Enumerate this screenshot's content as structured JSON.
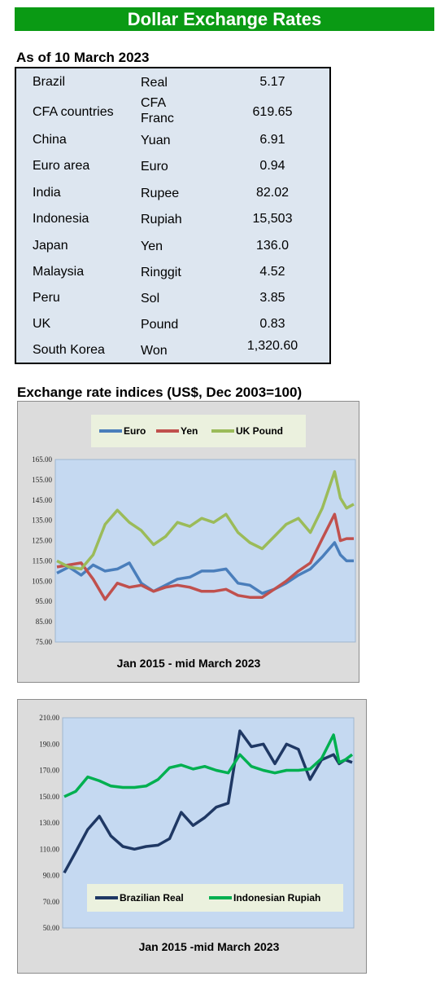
{
  "header": {
    "title": "Dollar Exchange Rates",
    "as_of": "As of 10 March 2023",
    "section_title": "Exchange rate indices (US$, Dec 2003=100)"
  },
  "rates": [
    {
      "country": "Brazil",
      "currency": "Real",
      "value": "5.17"
    },
    {
      "country": "CFA countries",
      "currency": "CFA Franc",
      "value": "619.65"
    },
    {
      "country": "China",
      "currency": "Yuan",
      "value": "6.91"
    },
    {
      "country": "Euro area",
      "currency": "Euro",
      "value": "0.94"
    },
    {
      "country": "India",
      "currency": "Rupee",
      "value": "82.02"
    },
    {
      "country": "Indonesia",
      "currency": "Rupiah",
      "value": "15,503"
    },
    {
      "country": "Japan",
      "currency": "Yen",
      "value": "136.0"
    },
    {
      "country": "Malaysia",
      "currency": "Ringgit",
      "value": "4.52"
    },
    {
      "country": "Peru",
      "currency": "Sol",
      "value": "3.85"
    },
    {
      "country": "UK",
      "currency": "Pound",
      "value": "0.83"
    },
    {
      "country": "South Korea",
      "currency": "Won",
      "value": "1,320.60"
    }
  ],
  "chart_data": [
    {
      "type": "line",
      "xlabel": "Jan 2015 -  mid March 2023",
      "ylim": [
        75,
        165
      ],
      "yticks": [
        "75.00",
        "85.00",
        "95.00",
        "105.00",
        "115.00",
        "125.00",
        "135.00",
        "145.00",
        "155.00",
        "165.00"
      ],
      "legend_position": "top",
      "x": [
        2015.0,
        2015.33,
        2015.67,
        2016.0,
        2016.33,
        2016.67,
        2017.0,
        2017.33,
        2017.67,
        2018.0,
        2018.33,
        2018.67,
        2019.0,
        2019.33,
        2019.67,
        2020.0,
        2020.33,
        2020.67,
        2021.0,
        2021.33,
        2021.67,
        2022.0,
        2022.33,
        2022.67,
        2022.83,
        2023.0,
        2023.2
      ],
      "series": [
        {
          "name": "Euro",
          "color": "#4a7ebb",
          "values": [
            109,
            112,
            108,
            113,
            110,
            111,
            114,
            104,
            100,
            103,
            106,
            107,
            110,
            110,
            111,
            104,
            103,
            99,
            101,
            104,
            108,
            111,
            117,
            124,
            118,
            115,
            115
          ]
        },
        {
          "name": "Yen",
          "color": "#c0504d",
          "values": [
            112,
            113,
            114,
            106,
            96,
            104,
            102,
            103,
            100,
            102,
            103,
            102,
            100,
            100,
            101,
            98,
            97,
            97,
            101,
            105,
            110,
            114,
            126,
            138,
            125,
            126,
            126
          ]
        },
        {
          "name": "UK Pound",
          "color": "#9bbb59",
          "values": [
            115,
            112,
            111,
            118,
            133,
            140,
            134,
            130,
            123,
            127,
            134,
            132,
            136,
            134,
            138,
            129,
            124,
            121,
            127,
            133,
            136,
            129,
            141,
            159,
            146,
            141,
            143
          ]
        }
      ]
    },
    {
      "type": "line",
      "xlabel": "Jan 2015 -mid March  2023",
      "ylim": [
        50,
        210
      ],
      "yticks": [
        "50.00",
        "70.00",
        "90.00",
        "110.00",
        "130.00",
        "150.00",
        "170.00",
        "190.00",
        "210.00"
      ],
      "legend_position": "bottom",
      "x": [
        2015.0,
        2015.33,
        2015.67,
        2016.0,
        2016.33,
        2016.67,
        2017.0,
        2017.33,
        2017.67,
        2018.0,
        2018.33,
        2018.67,
        2019.0,
        2019.33,
        2019.67,
        2020.0,
        2020.33,
        2020.67,
        2021.0,
        2021.33,
        2021.67,
        2022.0,
        2022.33,
        2022.67,
        2022.83,
        2023.0,
        2023.2
      ],
      "series": [
        {
          "name": "Brazilian Real",
          "color": "#1f3864",
          "values": [
            92,
            108,
            125,
            135,
            120,
            112,
            110,
            112,
            113,
            118,
            138,
            128,
            134,
            142,
            145,
            200,
            188,
            190,
            175,
            190,
            186,
            163,
            178,
            182,
            175,
            178,
            176
          ]
        },
        {
          "name": "Indonesian Rupiah",
          "color": "#00b050",
          "values": [
            150,
            154,
            165,
            162,
            158,
            157,
            157,
            158,
            163,
            172,
            174,
            171,
            173,
            170,
            168,
            182,
            173,
            170,
            168,
            170,
            170,
            171,
            179,
            197,
            176,
            178,
            182
          ]
        }
      ]
    }
  ]
}
